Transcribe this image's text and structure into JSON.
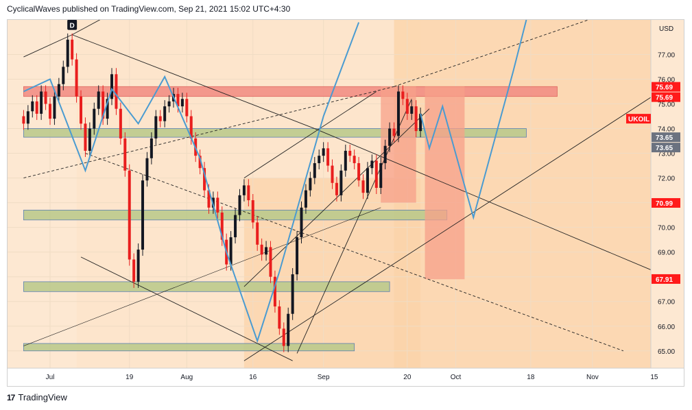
{
  "header": {
    "publisher_line": "CyclicalWaves published on TradingView.com, Sep 21, 2021 15:02 UTC+4:30"
  },
  "footer": {
    "brand": "TradingView",
    "logo_icon": "tradingview-logo-icon"
  },
  "colors": {
    "bull_candle": "#131722",
    "bear_candle": "#e91e1e",
    "zone_light": "#fde5cc",
    "zone_medium": "#fbd3a8",
    "green_zone": "#b9c98a",
    "red_zone": "#f28b82",
    "projection": "#4a9bd1",
    "red_tag": "#ff1a1a",
    "gray_tag": "#6b7280"
  },
  "chart_data": {
    "type": "candlestick",
    "symbol": "UKOIL",
    "currency": "USD",
    "ylim": [
      64.3,
      78.4
    ],
    "y_ticks": [
      65.0,
      66.0,
      67.0,
      68.0,
      69.0,
      70.0,
      71.0,
      72.0,
      73.0,
      74.0,
      75.0,
      76.0,
      77.0
    ],
    "x_ticks": [
      {
        "label": "Jul",
        "day": 0
      },
      {
        "label": "19",
        "day": 18
      },
      {
        "label": "Aug",
        "day": 31
      },
      {
        "label": "16",
        "day": 46
      },
      {
        "label": "Sep",
        "day": 62
      },
      {
        "label": "20",
        "day": 81
      },
      {
        "label": "Oct",
        "day": 92
      },
      {
        "label": "18",
        "day": 109
      },
      {
        "label": "Nov",
        "day": 123
      },
      {
        "label": "15",
        "day": 137
      }
    ],
    "closes": [
      {
        "day": -6,
        "value": 74.2
      },
      {
        "day": -5,
        "value": 74.7
      },
      {
        "day": -4,
        "value": 75.1
      },
      {
        "day": -3,
        "value": 74.6
      },
      {
        "day": -2,
        "value": 75.5
      },
      {
        "day": -1,
        "value": 75.0
      },
      {
        "day": 0,
        "value": 74.4
      },
      {
        "day": 1,
        "value": 75.3
      },
      {
        "day": 2,
        "value": 75.8
      },
      {
        "day": 3,
        "value": 76.5
      },
      {
        "day": 4,
        "value": 77.6
      },
      {
        "day": 5,
        "value": 76.8
      },
      {
        "day": 6,
        "value": 75.3
      },
      {
        "day": 7,
        "value": 74.2
      },
      {
        "day": 8,
        "value": 73.1
      },
      {
        "day": 9,
        "value": 74.0
      },
      {
        "day": 10,
        "value": 74.8
      },
      {
        "day": 11,
        "value": 75.5
      },
      {
        "day": 12,
        "value": 74.4
      },
      {
        "day": 13,
        "value": 75.2
      },
      {
        "day": 14,
        "value": 76.2
      },
      {
        "day": 15,
        "value": 74.8
      },
      {
        "day": 16,
        "value": 73.6
      },
      {
        "day": 17,
        "value": 72.3
      },
      {
        "day": 18,
        "value": 68.7
      },
      {
        "day": 19,
        "value": 67.8
      },
      {
        "day": 20,
        "value": 69.1
      },
      {
        "day": 21,
        "value": 71.9
      },
      {
        "day": 22,
        "value": 72.8
      },
      {
        "day": 23,
        "value": 73.6
      },
      {
        "day": 24,
        "value": 74.5
      },
      {
        "day": 25,
        "value": 74.3
      },
      {
        "day": 26,
        "value": 74.9
      },
      {
        "day": 27,
        "value": 75.1
      },
      {
        "day": 28,
        "value": 75.4
      },
      {
        "day": 29,
        "value": 74.9
      },
      {
        "day": 30,
        "value": 75.2
      },
      {
        "day": 31,
        "value": 74.5
      },
      {
        "day": 32,
        "value": 73.6
      },
      {
        "day": 33,
        "value": 72.9
      },
      {
        "day": 34,
        "value": 72.4
      },
      {
        "day": 35,
        "value": 71.5
      },
      {
        "day": 36,
        "value": 70.8
      },
      {
        "day": 37,
        "value": 71.2
      },
      {
        "day": 38,
        "value": 70.6
      },
      {
        "day": 39,
        "value": 69.5
      },
      {
        "day": 40,
        "value": 68.5
      },
      {
        "day": 41,
        "value": 69.6
      },
      {
        "day": 42,
        "value": 70.5
      },
      {
        "day": 43,
        "value": 71.3
      },
      {
        "day": 44,
        "value": 71.7
      },
      {
        "day": 45,
        "value": 71.1
      },
      {
        "day": 46,
        "value": 70.2
      },
      {
        "day": 47,
        "value": 69.3
      },
      {
        "day": 48,
        "value": 68.9
      },
      {
        "day": 49,
        "value": 69.2
      },
      {
        "day": 50,
        "value": 68.0
      },
      {
        "day": 51,
        "value": 66.8
      },
      {
        "day": 52,
        "value": 65.9
      },
      {
        "day": 53,
        "value": 65.2
      },
      {
        "day": 54,
        "value": 66.5
      },
      {
        "day": 55,
        "value": 68.1
      },
      {
        "day": 56,
        "value": 69.6
      },
      {
        "day": 57,
        "value": 70.8
      },
      {
        "day": 58,
        "value": 71.5
      },
      {
        "day": 59,
        "value": 72.0
      },
      {
        "day": 60,
        "value": 72.6
      },
      {
        "day": 61,
        "value": 72.9
      },
      {
        "day": 62,
        "value": 73.2
      },
      {
        "day": 63,
        "value": 72.5
      },
      {
        "day": 64,
        "value": 71.8
      },
      {
        "day": 65,
        "value": 71.3
      },
      {
        "day": 66,
        "value": 72.3
      },
      {
        "day": 67,
        "value": 73.1
      },
      {
        "day": 68,
        "value": 72.9
      },
      {
        "day": 69,
        "value": 72.6
      },
      {
        "day": 70,
        "value": 71.9
      },
      {
        "day": 71,
        "value": 71.4
      },
      {
        "day": 72,
        "value": 72.4
      },
      {
        "day": 73,
        "value": 72.7
      },
      {
        "day": 74,
        "value": 71.6
      },
      {
        "day": 75,
        "value": 72.6
      },
      {
        "day": 76,
        "value": 73.3
      },
      {
        "day": 77,
        "value": 74.0
      },
      {
        "day": 78,
        "value": 73.7
      },
      {
        "day": 79,
        "value": 75.5
      },
      {
        "day": 80,
        "value": 75.2
      },
      {
        "day": 81,
        "value": 74.6
      },
      {
        "day": 82,
        "value": 74.9
      },
      {
        "day": 83,
        "value": 73.9
      },
      {
        "day": 84,
        "value": 74.6
      }
    ],
    "annotations": {
      "pattern_point_label": "D",
      "price_tags": [
        {
          "value": 75.69,
          "text": "75.69",
          "style": "red"
        },
        {
          "value": 75.69,
          "text": "75.69",
          "style": "red"
        },
        {
          "value": 73.65,
          "text": "73.65",
          "style": "gray"
        },
        {
          "value": 73.65,
          "text": "73.65",
          "style": "gray"
        },
        {
          "value": 70.99,
          "text": "70.99",
          "style": "red"
        },
        {
          "value": 67.91,
          "text": "67.91",
          "style": "red"
        }
      ],
      "horizontal_zones": [
        {
          "y_low": 75.3,
          "y_high": 75.7,
          "day_start": -6,
          "day_end": 115,
          "color": "red"
        },
        {
          "y_low": 73.65,
          "y_high": 74.0,
          "day_start": -6,
          "day_end": 108,
          "color": "green"
        },
        {
          "y_low": 70.3,
          "y_high": 70.7,
          "day_start": -6,
          "day_end": 90,
          "color": "green"
        },
        {
          "y_low": 67.4,
          "y_high": 67.8,
          "day_start": -6,
          "day_end": 77,
          "color": "green"
        },
        {
          "y_low": 65.0,
          "y_high": 65.3,
          "day_start": -6,
          "day_end": 69,
          "color": "green"
        }
      ],
      "target_boxes": [
        {
          "day_start": 75,
          "day_end": 83,
          "y_low": 71.0,
          "y_high": 75.7
        },
        {
          "day_start": 85,
          "day_end": 94,
          "y_low": 67.9,
          "y_high": 75.7
        }
      ],
      "projection_path": [
        {
          "day": 84,
          "value": 74.6
        },
        {
          "day": 86,
          "value": 73.2
        },
        {
          "day": 89,
          "value": 74.9
        },
        {
          "day": 96,
          "value": 70.4
        },
        {
          "day": 105,
          "value": 76.3
        },
        {
          "day": 108,
          "value": 78.4
        }
      ]
    }
  }
}
